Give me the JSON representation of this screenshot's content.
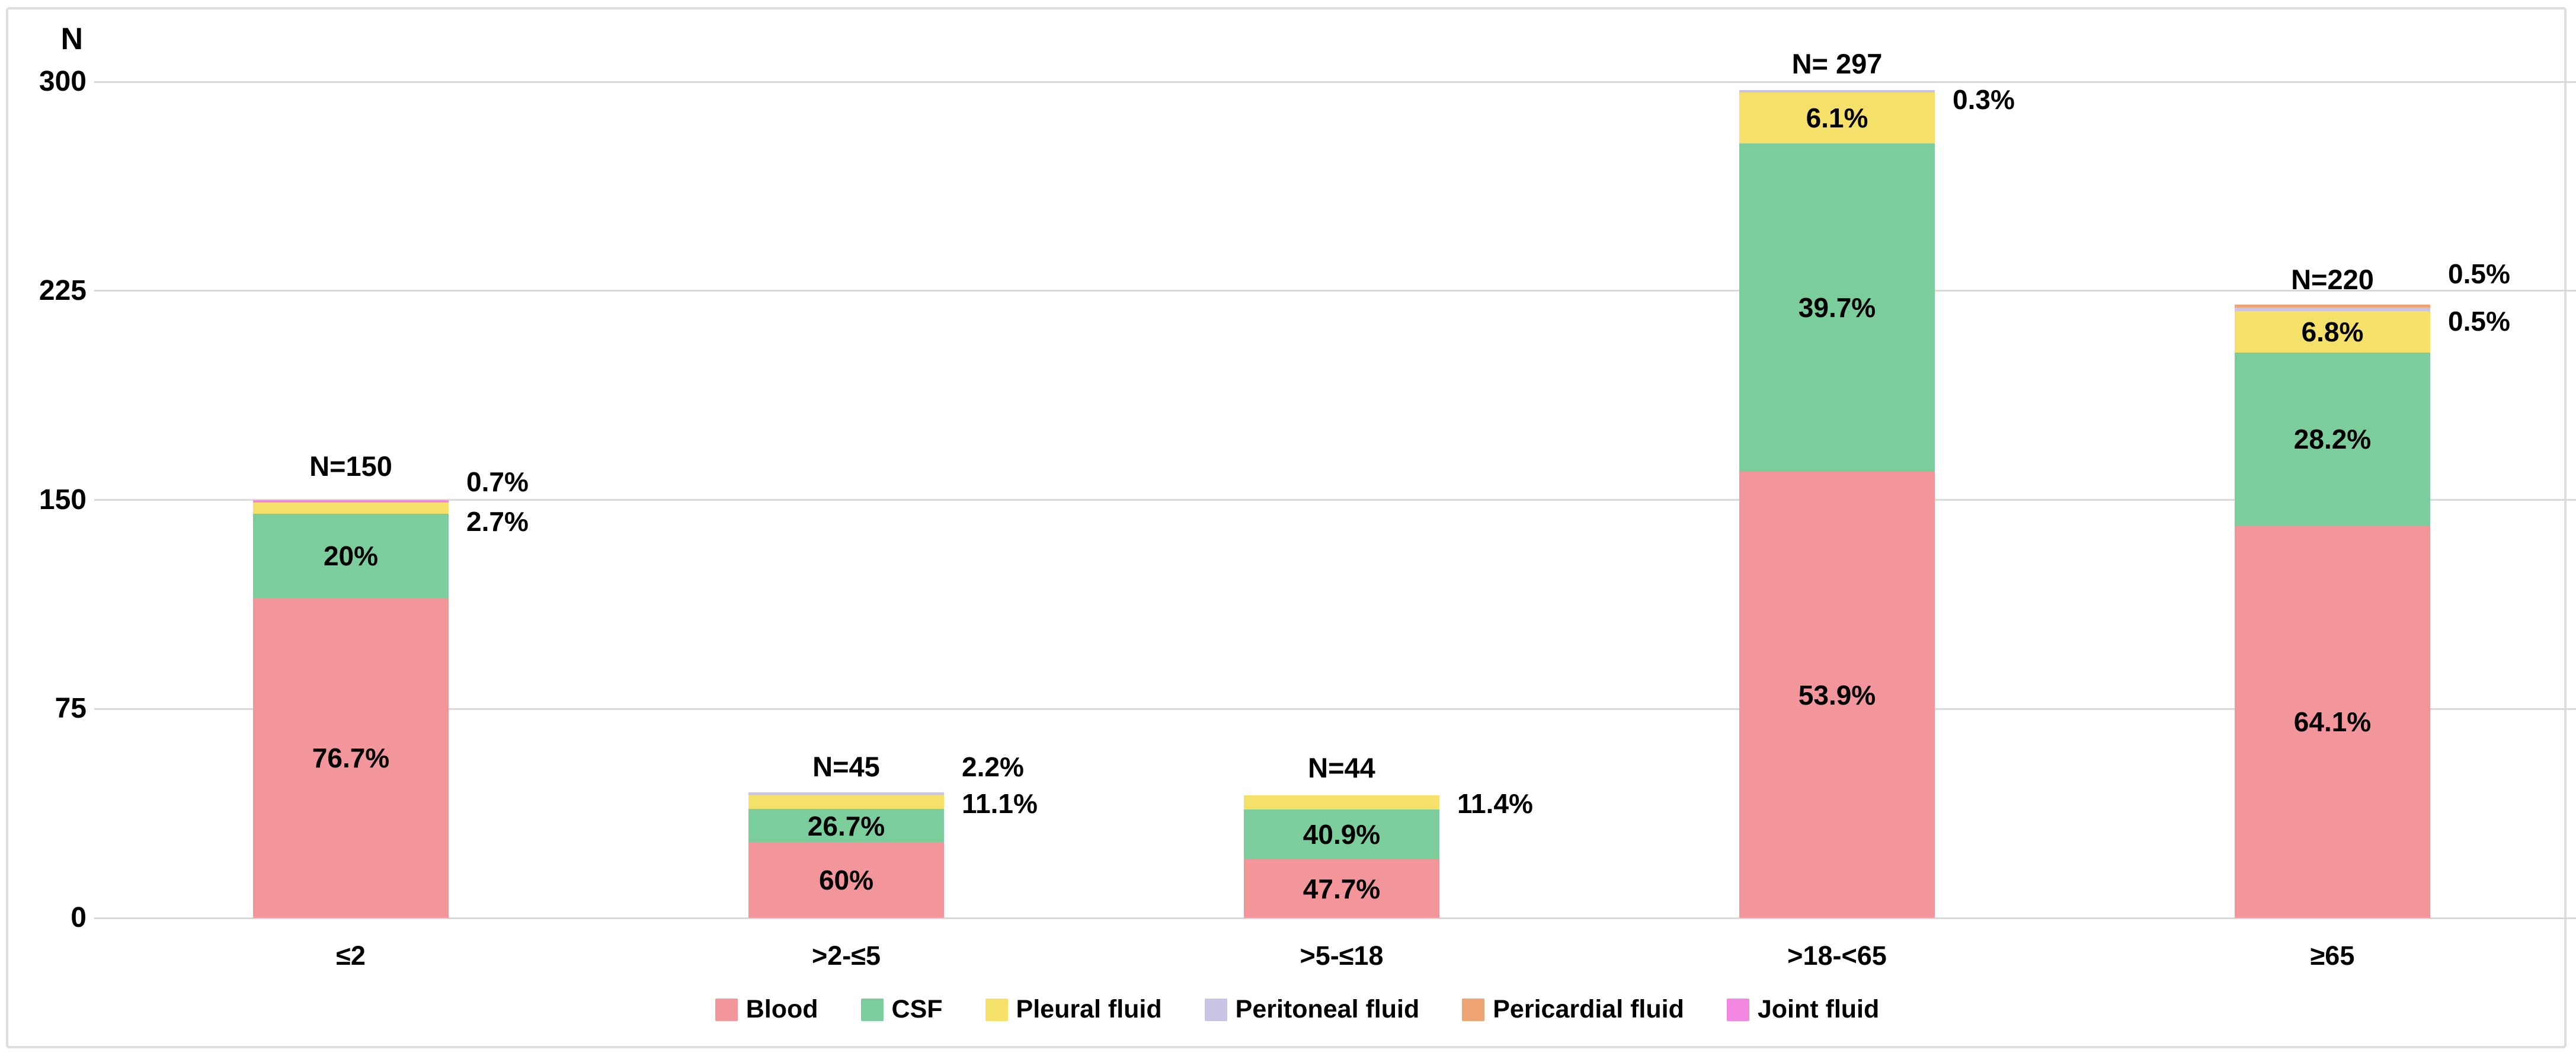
{
  "chart_data": {
    "type": "stacked-bar",
    "ylabel": "N",
    "ylim": [
      0,
      300
    ],
    "yticks": [
      0,
      75,
      150,
      225,
      300
    ],
    "grid": true,
    "legend_position": "bottom",
    "categories": [
      "≤2",
      ">2-≤5",
      ">5-≤18",
      ">18-<65",
      "≥65"
    ],
    "colors": {
      "Blood": "#F2969C",
      "CSF": "#7CCD9C",
      "Pleural fluid": "#F5E169",
      "Peritoneal fluid": "#C9C4E6",
      "Pericardial fluid": "#EFA573",
      "Joint fluid": "#F287E2"
    },
    "legend": [
      "Blood",
      "CSF",
      "Pleural fluid",
      "Peritoneal fluid",
      "Pericardial fluid",
      "Joint fluid"
    ],
    "bars": [
      {
        "category": "≤2",
        "n": 150,
        "n_label": "N=150",
        "segments": [
          {
            "series": "Blood",
            "pct": 76.7,
            "label": "76.7%",
            "label_pos": "inside"
          },
          {
            "series": "CSF",
            "pct": 20,
            "label": "20%",
            "label_pos": "inside"
          },
          {
            "series": "Pleural fluid",
            "pct": 2.7,
            "label": "2.7%",
            "label_pos": "side"
          },
          {
            "series": "Joint fluid",
            "pct": 0.7,
            "label": "0.7%",
            "label_pos": "side"
          }
        ]
      },
      {
        "category": ">2-≤5",
        "n": 45,
        "n_label": "N=45",
        "segments": [
          {
            "series": "Blood",
            "pct": 60,
            "label": "60%",
            "label_pos": "inside"
          },
          {
            "series": "CSF",
            "pct": 26.7,
            "label": "26.7%",
            "label_pos": "inside"
          },
          {
            "series": "Pleural fluid",
            "pct": 11.1,
            "label": "11.1%",
            "label_pos": "side"
          },
          {
            "series": "Peritoneal fluid",
            "pct": 2.2,
            "label": "2.2%",
            "label_pos": "side"
          }
        ]
      },
      {
        "category": ">5-≤18",
        "n": 44,
        "n_label": "N=44",
        "segments": [
          {
            "series": "Blood",
            "pct": 47.7,
            "label": "47.7%",
            "label_pos": "inside"
          },
          {
            "series": "CSF",
            "pct": 40.9,
            "label": "40.9%",
            "label_pos": "inside"
          },
          {
            "series": "Pleural fluid",
            "pct": 11.4,
            "label": "11.4%",
            "label_pos": "side"
          }
        ]
      },
      {
        "category": ">18-<65",
        "n": 297,
        "n_label": "N= 297",
        "segments": [
          {
            "series": "Blood",
            "pct": 53.9,
            "label": "53.9%",
            "label_pos": "inside"
          },
          {
            "series": "CSF",
            "pct": 39.7,
            "label": "39.7%",
            "label_pos": "inside"
          },
          {
            "series": "Pleural fluid",
            "pct": 6.1,
            "label": "6.1%",
            "label_pos": "inside"
          },
          {
            "series": "Peritoneal fluid",
            "pct": 0.3,
            "label": "0.3%",
            "label_pos": "side"
          }
        ]
      },
      {
        "category": "≥65",
        "n": 220,
        "n_label": "N=220",
        "segments": [
          {
            "series": "Blood",
            "pct": 64.1,
            "label": "64.1%",
            "label_pos": "inside"
          },
          {
            "series": "CSF",
            "pct": 28.2,
            "label": "28.2%",
            "label_pos": "inside"
          },
          {
            "series": "Pleural fluid",
            "pct": 6.8,
            "label": "6.8%",
            "label_pos": "inside"
          },
          {
            "series": "Peritoneal fluid",
            "pct": 0.5,
            "label": "0.5%",
            "label_pos": "side"
          },
          {
            "series": "Pericardial fluid",
            "pct": 0.5,
            "label": "0.5%",
            "label_pos": "side"
          }
        ]
      }
    ]
  }
}
